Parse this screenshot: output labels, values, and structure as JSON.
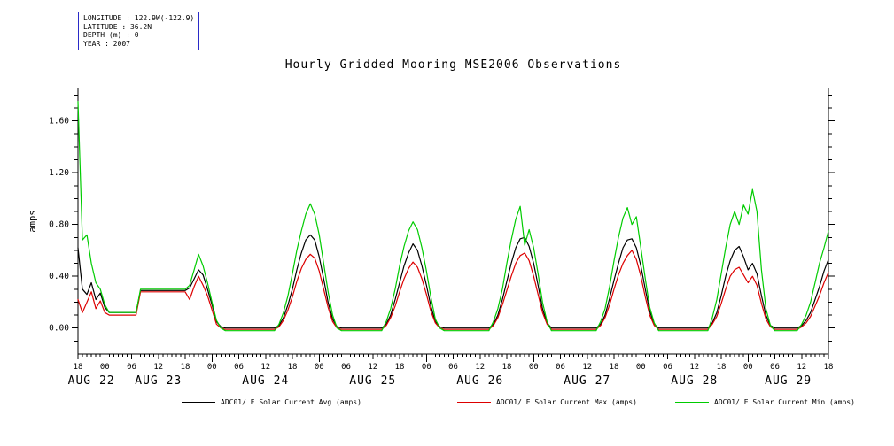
{
  "info_box": {
    "lines": [
      "LONGITUDE : 122.9W(-122.9)",
      "LATITUDE : 36.2N",
      "DEPTH (m) : 0",
      "YEAR : 2007"
    ]
  },
  "title": "Hourly Gridded Mooring MSE2006 Observations",
  "legend": {
    "items": [
      {
        "label": "ADC01/ E Solar Current Avg (amps)",
        "color": "#000000"
      },
      {
        "label": "ADC01/ E Solar Current Max (amps)",
        "color": "#dd0000"
      },
      {
        "label": "ADC01/ E Solar Current Min (amps)",
        "color": "#00cc00"
      }
    ]
  },
  "chart_data": {
    "type": "line",
    "title": "Hourly Gridded Mooring MSE2006 Observations",
    "ylabel": "amps",
    "ylim": [
      -0.2,
      1.85
    ],
    "yticks_major": [
      0.0,
      0.4,
      0.8,
      1.2,
      1.6
    ],
    "ytick_labels": [
      "0.00",
      "0.40",
      "0.80",
      "1.20",
      "1.60"
    ],
    "y_minor_step": 0.1,
    "hours_span": 168,
    "x_tick_interval_hours": 6,
    "x_tick_labels": [
      "18",
      "00",
      "06",
      "12",
      "18",
      "00",
      "06",
      "12",
      "18",
      "00",
      "06",
      "12",
      "18",
      "00",
      "06",
      "12",
      "18",
      "00",
      "06",
      "12",
      "18",
      "00",
      "06",
      "12",
      "18",
      "00",
      "06",
      "12",
      "18"
    ],
    "day_labels": [
      {
        "label": "AUG 22",
        "t": 3
      },
      {
        "label": "AUG 23",
        "t": 18
      },
      {
        "label": "AUG 24",
        "t": 42
      },
      {
        "label": "AUG 25",
        "t": 66
      },
      {
        "label": "AUG 26",
        "t": 90
      },
      {
        "label": "AUG 27",
        "t": 114
      },
      {
        "label": "AUG 28",
        "t": 138
      },
      {
        "label": "AUG 29",
        "t": 159
      }
    ],
    "series": [
      {
        "name": "ADC01/ E Solar Current Avg (amps)",
        "color": "#000000",
        "values": [
          0.62,
          0.3,
          0.26,
          0.35,
          0.22,
          0.27,
          0.16,
          0.12,
          0.12,
          0.12,
          0.12,
          0.12,
          0.12,
          0.12,
          0.29,
          0.29,
          0.29,
          0.29,
          0.29,
          0.29,
          0.29,
          0.29,
          0.29,
          0.29,
          0.29,
          0.31,
          0.38,
          0.45,
          0.41,
          0.3,
          0.18,
          0.05,
          0.01,
          0,
          0,
          0,
          0,
          0,
          0,
          0,
          0,
          0,
          0,
          0,
          0,
          0.02,
          0.08,
          0.18,
          0.3,
          0.45,
          0.58,
          0.68,
          0.72,
          0.68,
          0.55,
          0.38,
          0.2,
          0.07,
          0.01,
          0,
          0,
          0,
          0,
          0,
          0,
          0,
          0,
          0,
          0,
          0.03,
          0.1,
          0.22,
          0.35,
          0.48,
          0.58,
          0.65,
          0.6,
          0.48,
          0.33,
          0.17,
          0.05,
          0.01,
          0,
          0,
          0,
          0,
          0,
          0,
          0,
          0,
          0,
          0,
          0,
          0.03,
          0.1,
          0.22,
          0.36,
          0.5,
          0.62,
          0.69,
          0.7,
          0.63,
          0.5,
          0.33,
          0.15,
          0.04,
          0,
          0,
          0,
          0,
          0,
          0,
          0,
          0,
          0,
          0,
          0,
          0.03,
          0.1,
          0.23,
          0.37,
          0.5,
          0.62,
          0.68,
          0.69,
          0.62,
          0.48,
          0.3,
          0.13,
          0.03,
          0,
          0,
          0,
          0,
          0,
          0,
          0,
          0,
          0,
          0,
          0,
          0,
          0.04,
          0.12,
          0.25,
          0.4,
          0.52,
          0.6,
          0.63,
          0.55,
          0.45,
          0.5,
          0.42,
          0.25,
          0.1,
          0.02,
          0,
          0,
          0,
          0,
          0,
          0,
          0.02,
          0.06,
          0.12,
          0.22,
          0.32,
          0.44,
          0.53
        ]
      },
      {
        "name": "ADC01/ E Solar Current Max (amps)",
        "color": "#dd0000",
        "values": [
          0.22,
          0.12,
          0.2,
          0.28,
          0.15,
          0.21,
          0.12,
          0.1,
          0.1,
          0.1,
          0.1,
          0.1,
          0.1,
          0.1,
          0.28,
          0.28,
          0.28,
          0.28,
          0.28,
          0.28,
          0.28,
          0.28,
          0.28,
          0.28,
          0.28,
          0.22,
          0.32,
          0.4,
          0.33,
          0.25,
          0.14,
          0.03,
          0,
          -0.01,
          -0.01,
          -0.01,
          -0.01,
          -0.01,
          -0.01,
          -0.01,
          -0.01,
          -0.01,
          -0.01,
          -0.01,
          -0.01,
          0.01,
          0.06,
          0.14,
          0.24,
          0.36,
          0.46,
          0.53,
          0.57,
          0.54,
          0.44,
          0.3,
          0.16,
          0.05,
          0,
          -0.01,
          -0.01,
          -0.01,
          -0.01,
          -0.01,
          -0.01,
          -0.01,
          -0.01,
          -0.01,
          -0.01,
          0.02,
          0.08,
          0.17,
          0.28,
          0.38,
          0.46,
          0.51,
          0.47,
          0.38,
          0.26,
          0.13,
          0.04,
          0,
          -0.01,
          -0.01,
          -0.01,
          -0.01,
          -0.01,
          -0.01,
          -0.01,
          -0.01,
          -0.01,
          -0.01,
          -0.01,
          0.02,
          0.08,
          0.18,
          0.29,
          0.4,
          0.5,
          0.56,
          0.58,
          0.52,
          0.4,
          0.26,
          0.12,
          0.03,
          -0.01,
          -0.01,
          -0.01,
          -0.01,
          -0.01,
          -0.01,
          -0.01,
          -0.01,
          -0.01,
          -0.01,
          -0.01,
          0.02,
          0.08,
          0.18,
          0.3,
          0.41,
          0.5,
          0.56,
          0.6,
          0.53,
          0.4,
          0.24,
          0.1,
          0.02,
          -0.01,
          -0.01,
          -0.01,
          -0.01,
          -0.01,
          -0.01,
          -0.01,
          -0.01,
          -0.01,
          -0.01,
          -0.01,
          -0.01,
          0.03,
          0.09,
          0.19,
          0.3,
          0.4,
          0.45,
          0.47,
          0.41,
          0.35,
          0.4,
          0.33,
          0.19,
          0.07,
          0.01,
          -0.01,
          -0.01,
          -0.01,
          -0.01,
          -0.01,
          -0.01,
          0.01,
          0.04,
          0.09,
          0.17,
          0.25,
          0.35,
          0.43
        ]
      },
      {
        "name": "ADC01/ E Solar Current Min (amps)",
        "color": "#00cc00",
        "values": [
          1.75,
          0.68,
          0.72,
          0.5,
          0.35,
          0.3,
          0.18,
          0.12,
          0.12,
          0.12,
          0.12,
          0.12,
          0.12,
          0.12,
          0.3,
          0.3,
          0.3,
          0.3,
          0.3,
          0.3,
          0.3,
          0.3,
          0.3,
          0.3,
          0.3,
          0.33,
          0.45,
          0.57,
          0.48,
          0.35,
          0.2,
          0.06,
          0,
          -0.02,
          -0.02,
          -0.02,
          -0.02,
          -0.02,
          -0.02,
          -0.02,
          -0.02,
          -0.02,
          -0.02,
          -0.02,
          -0.02,
          0.03,
          0.12,
          0.25,
          0.42,
          0.6,
          0.75,
          0.88,
          0.96,
          0.88,
          0.72,
          0.5,
          0.28,
          0.1,
          0,
          -0.02,
          -0.02,
          -0.02,
          -0.02,
          -0.02,
          -0.02,
          -0.02,
          -0.02,
          -0.02,
          -0.02,
          0.05,
          0.15,
          0.3,
          0.48,
          0.63,
          0.75,
          0.82,
          0.76,
          0.62,
          0.44,
          0.24,
          0.07,
          0,
          -0.02,
          -0.02,
          -0.02,
          -0.02,
          -0.02,
          -0.02,
          -0.02,
          -0.02,
          -0.02,
          -0.02,
          -0.02,
          0.05,
          0.15,
          0.3,
          0.5,
          0.68,
          0.84,
          0.94,
          0.64,
          0.76,
          0.62,
          0.42,
          0.2,
          0.05,
          -0.02,
          -0.02,
          -0.02,
          -0.02,
          -0.02,
          -0.02,
          -0.02,
          -0.02,
          -0.02,
          -0.02,
          -0.02,
          0.05,
          0.15,
          0.32,
          0.52,
          0.7,
          0.85,
          0.93,
          0.8,
          0.86,
          0.62,
          0.38,
          0.16,
          0.04,
          -0.02,
          -0.02,
          -0.02,
          -0.02,
          -0.02,
          -0.02,
          -0.02,
          -0.02,
          -0.02,
          -0.02,
          -0.02,
          -0.02,
          0.08,
          0.22,
          0.42,
          0.62,
          0.8,
          0.9,
          0.8,
          0.95,
          0.88,
          1.07,
          0.9,
          0.45,
          0.15,
          0.02,
          -0.02,
          -0.02,
          -0.02,
          -0.02,
          -0.02,
          -0.02,
          0.03,
          0.1,
          0.2,
          0.35,
          0.5,
          0.62,
          0.75
        ]
      }
    ]
  }
}
